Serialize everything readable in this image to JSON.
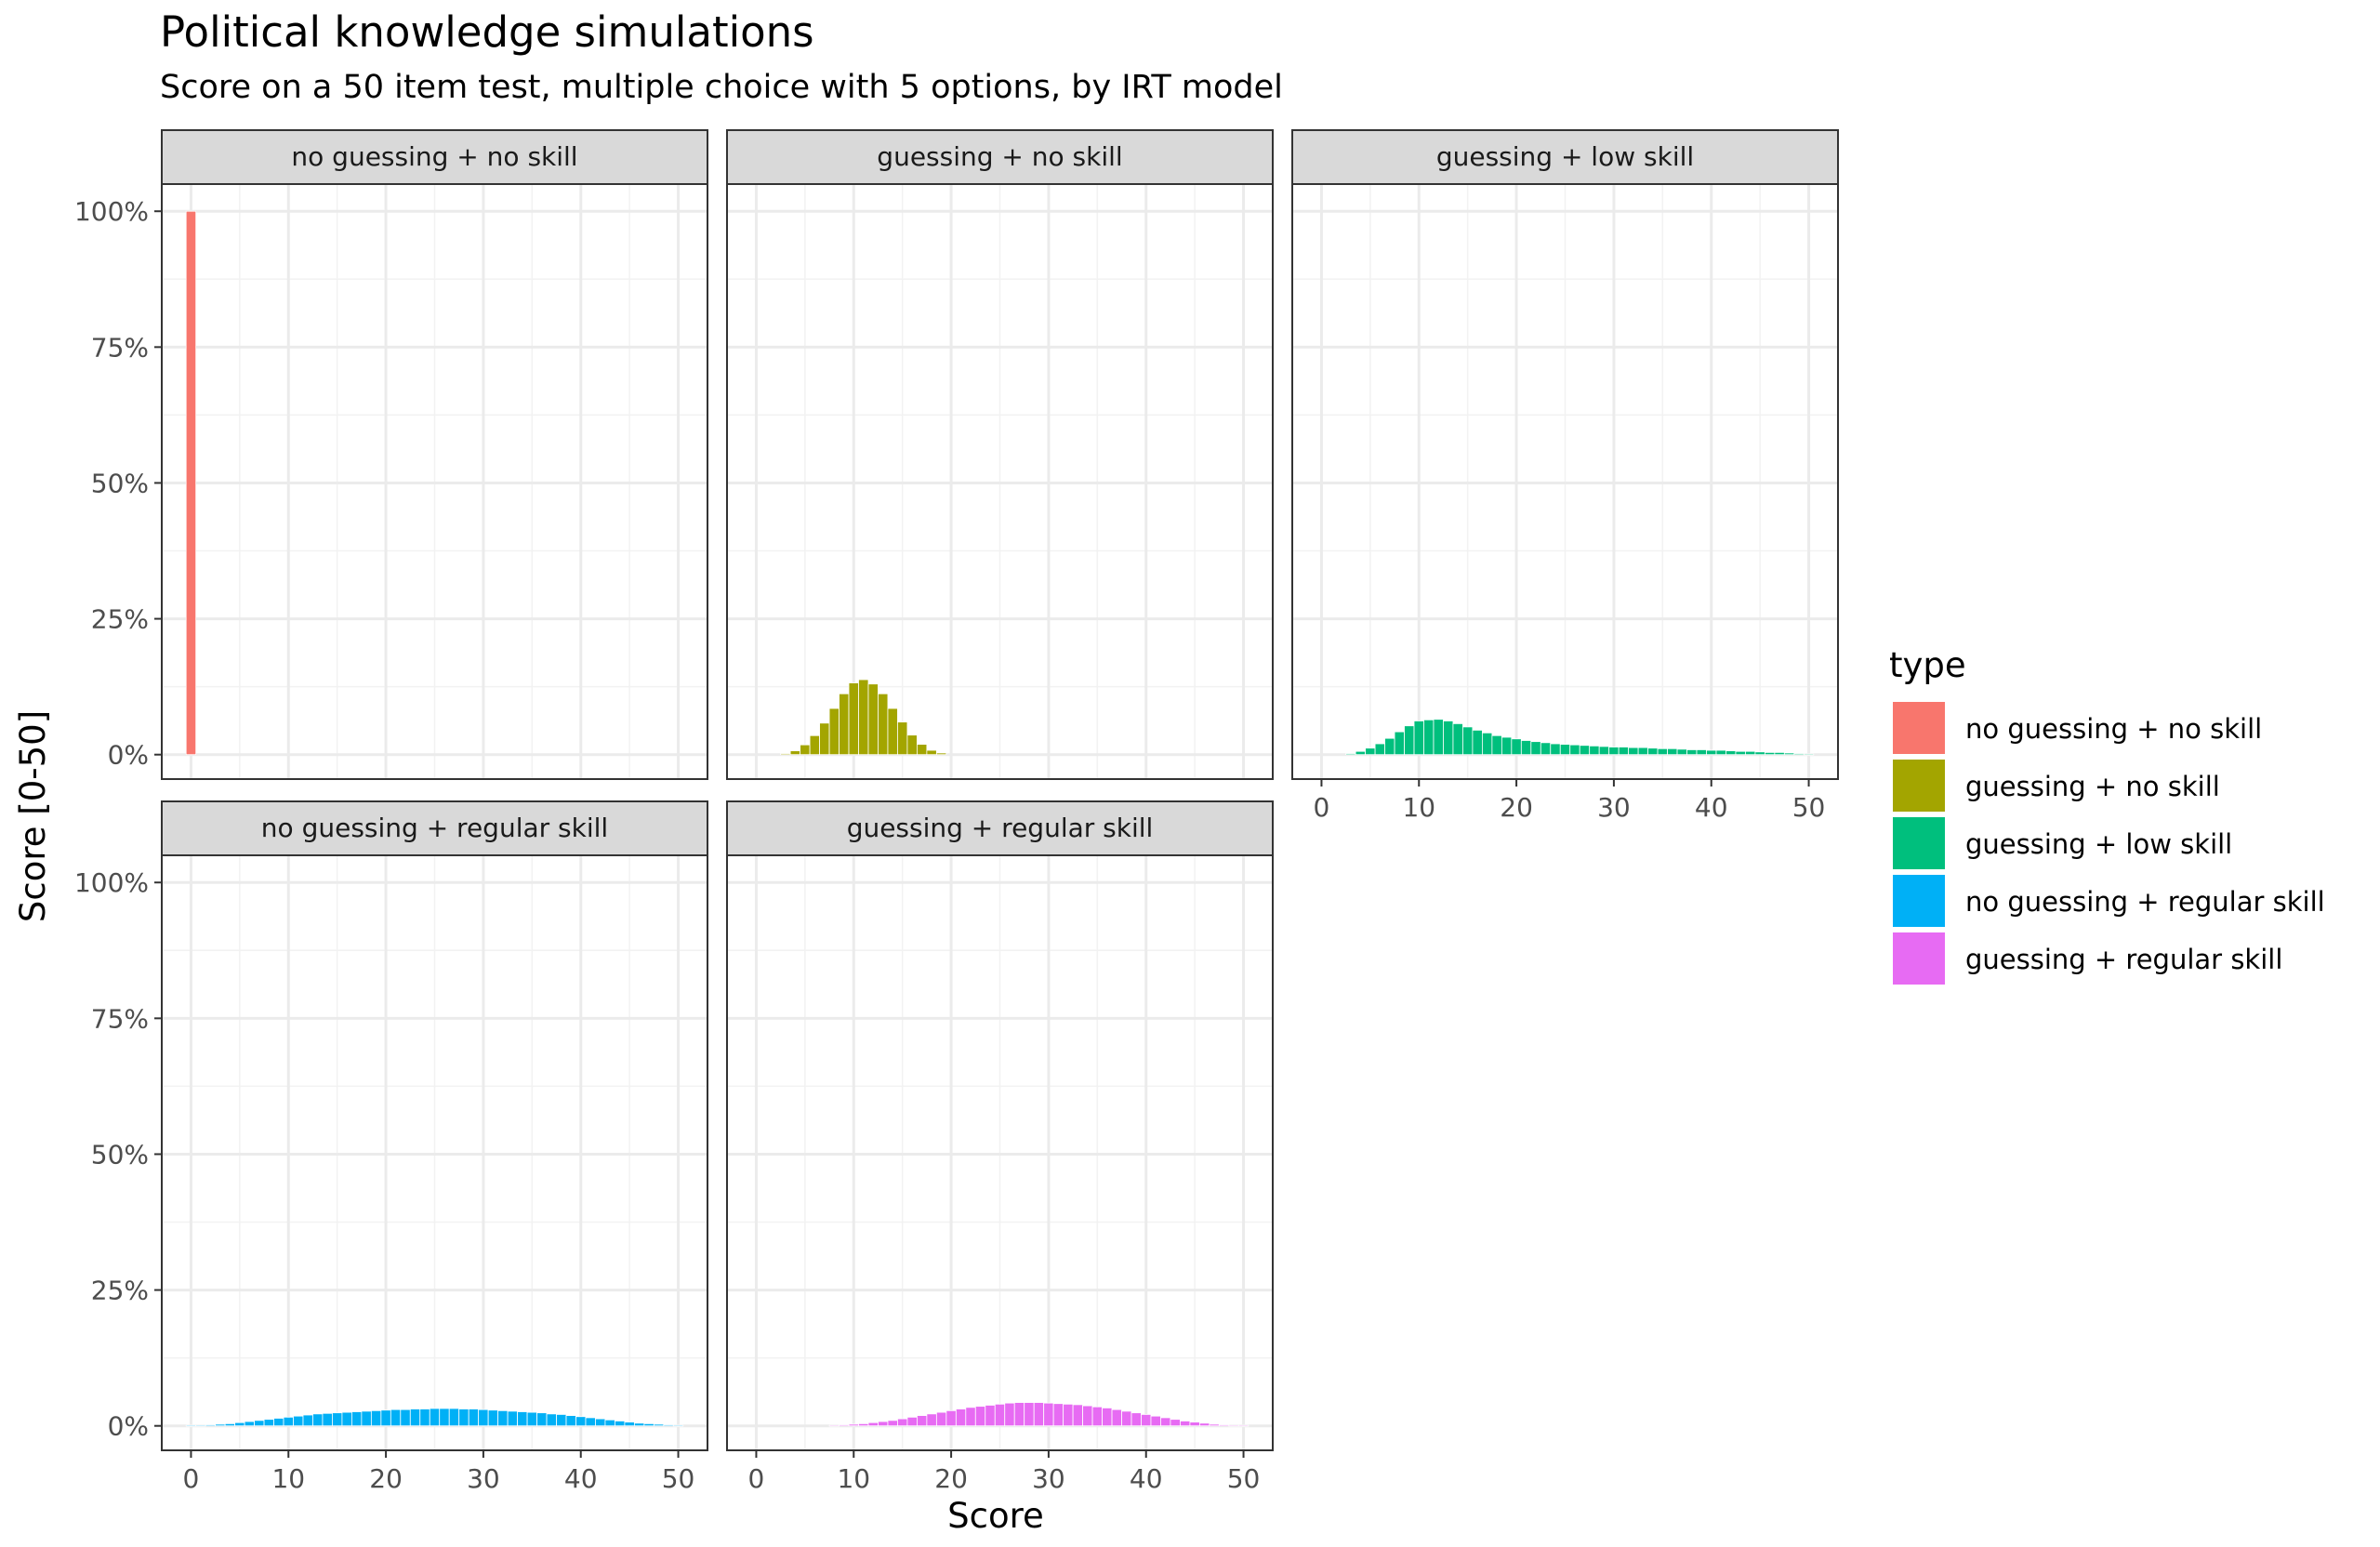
{
  "chart_data": {
    "type": "bar",
    "title": "Political knowledge simulations",
    "subtitle": "Score on a 50 item test, multiple choice with 5 options, by IRT model",
    "xlabel": "Score",
    "ylabel": "Score [0-50]",
    "xlim": [
      -3,
      53
    ],
    "ylim": [
      -0.045,
      1.05
    ],
    "x_ticks": [
      0,
      10,
      20,
      30,
      40,
      50
    ],
    "y_ticks": [
      0,
      0.25,
      0.5,
      0.75,
      1.0
    ],
    "y_tick_labels": [
      "0%",
      "25%",
      "50%",
      "75%",
      "100%"
    ],
    "grid": true,
    "legend": {
      "title": "type",
      "position": "right",
      "entries": [
        {
          "label": "no guessing + no skill",
          "color": "#F8766D"
        },
        {
          "label": "guessing + no skill",
          "color": "#A3A500"
        },
        {
          "label": "guessing + low skill",
          "color": "#00BF7D"
        },
        {
          "label": "no guessing + regular skill",
          "color": "#00B0F6"
        },
        {
          "label": "guessing + regular skill",
          "color": "#E76BF3"
        }
      ]
    },
    "panels": [
      {
        "name": "no guessing + no skill",
        "color": "#F8766D",
        "x": [
          0
        ],
        "values": [
          1.0
        ]
      },
      {
        "name": "guessing + no skill",
        "color": "#A3A500",
        "x": [
          3,
          4,
          5,
          6,
          7,
          8,
          9,
          10,
          11,
          12,
          13,
          14,
          15,
          16,
          17,
          18,
          19
        ],
        "values": [
          0.002,
          0.007,
          0.018,
          0.035,
          0.058,
          0.085,
          0.112,
          0.132,
          0.138,
          0.13,
          0.112,
          0.085,
          0.06,
          0.036,
          0.019,
          0.008,
          0.003
        ]
      },
      {
        "name": "guessing + low skill",
        "color": "#00BF7D",
        "x": [
          3,
          4,
          5,
          6,
          7,
          8,
          9,
          10,
          11,
          12,
          13,
          14,
          15,
          16,
          17,
          18,
          19,
          20,
          21,
          22,
          23,
          24,
          25,
          26,
          27,
          28,
          29,
          30,
          31,
          32,
          33,
          34,
          35,
          36,
          37,
          38,
          39,
          40,
          41,
          42,
          43,
          44,
          45,
          46,
          47,
          48,
          49,
          50
        ],
        "values": [
          0.002,
          0.006,
          0.012,
          0.02,
          0.03,
          0.042,
          0.053,
          0.062,
          0.064,
          0.065,
          0.062,
          0.057,
          0.051,
          0.045,
          0.04,
          0.035,
          0.032,
          0.029,
          0.026,
          0.024,
          0.022,
          0.02,
          0.019,
          0.018,
          0.017,
          0.016,
          0.015,
          0.014,
          0.014,
          0.013,
          0.013,
          0.012,
          0.011,
          0.011,
          0.01,
          0.009,
          0.009,
          0.008,
          0.008,
          0.007,
          0.006,
          0.006,
          0.005,
          0.004,
          0.004,
          0.003,
          0.002,
          0.001
        ]
      },
      {
        "name": "no guessing + regular skill",
        "color": "#00B0F6",
        "x": [
          0,
          1,
          2,
          3,
          4,
          5,
          6,
          7,
          8,
          9,
          10,
          11,
          12,
          13,
          14,
          15,
          16,
          17,
          18,
          19,
          20,
          21,
          22,
          23,
          24,
          25,
          26,
          27,
          28,
          29,
          30,
          31,
          32,
          33,
          34,
          35,
          36,
          37,
          38,
          39,
          40,
          41,
          42,
          43,
          44,
          45,
          46,
          47,
          48,
          49,
          50
        ],
        "values": [
          0.001,
          0.001,
          0.002,
          0.003,
          0.004,
          0.006,
          0.008,
          0.01,
          0.012,
          0.014,
          0.016,
          0.018,
          0.02,
          0.022,
          0.023,
          0.024,
          0.025,
          0.026,
          0.027,
          0.028,
          0.029,
          0.03,
          0.03,
          0.031,
          0.031,
          0.032,
          0.032,
          0.032,
          0.031,
          0.031,
          0.03,
          0.029,
          0.028,
          0.027,
          0.026,
          0.025,
          0.024,
          0.022,
          0.021,
          0.019,
          0.017,
          0.015,
          0.013,
          0.011,
          0.009,
          0.007,
          0.005,
          0.004,
          0.003,
          0.002,
          0.001
        ]
      },
      {
        "name": "guessing + regular skill",
        "color": "#E76BF3",
        "x": [
          8,
          9,
          10,
          11,
          12,
          13,
          14,
          15,
          16,
          17,
          18,
          19,
          20,
          21,
          22,
          23,
          24,
          25,
          26,
          27,
          28,
          29,
          30,
          31,
          32,
          33,
          34,
          35,
          36,
          37,
          38,
          39,
          40,
          41,
          42,
          43,
          44,
          45,
          46,
          47,
          48,
          49,
          50
        ],
        "values": [
          0.001,
          0.002,
          0.003,
          0.004,
          0.006,
          0.008,
          0.01,
          0.013,
          0.016,
          0.019,
          0.022,
          0.025,
          0.028,
          0.031,
          0.034,
          0.036,
          0.038,
          0.04,
          0.042,
          0.043,
          0.043,
          0.043,
          0.042,
          0.041,
          0.04,
          0.039,
          0.037,
          0.035,
          0.033,
          0.03,
          0.027,
          0.024,
          0.021,
          0.018,
          0.015,
          0.012,
          0.009,
          0.007,
          0.005,
          0.003,
          0.002,
          0.001,
          0.001
        ]
      }
    ]
  }
}
